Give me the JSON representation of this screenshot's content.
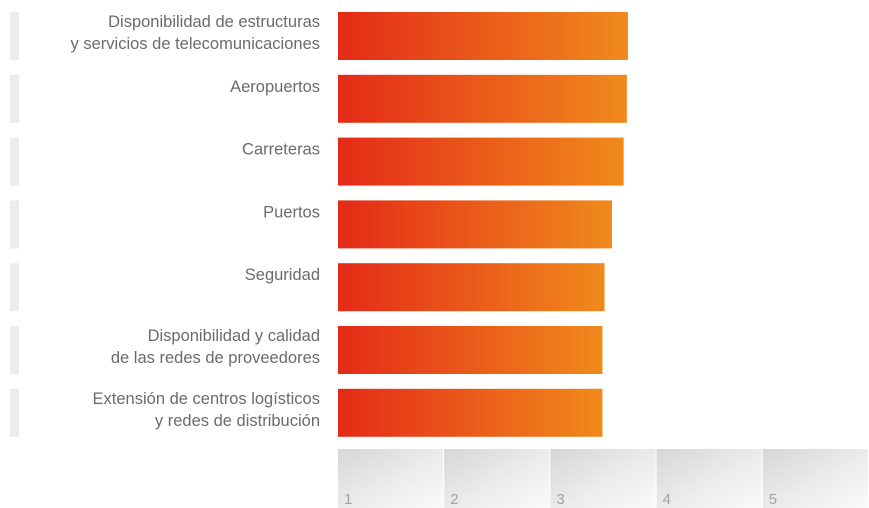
{
  "chart_data": {
    "type": "bar",
    "orientation": "horizontal",
    "categories": [
      [
        "Disponibilidad de estructuras",
        "y servicios de telecomunicaciones"
      ],
      [
        "Aeropuertos"
      ],
      [
        "Carreteras"
      ],
      [
        "Puertos"
      ],
      [
        "Seguridad"
      ],
      [
        "Disponibilidad y calidad",
        "de las redes de proveedores"
      ],
      [
        "Extensión de centros logísticos",
        "y redes de distribución"
      ]
    ],
    "values": [
      3.73,
      3.72,
      3.69,
      3.58,
      3.51,
      3.49,
      3.49
    ],
    "xlim": [
      1,
      6
    ],
    "xticks": [
      "1",
      "2",
      "3",
      "4",
      "5"
    ],
    "colors": {
      "bar_start": "#e42a18",
      "bar_end": "#f08a1c",
      "label": "#6b6b6b",
      "tick": "#a3a3a3",
      "marker": "#ececec"
    },
    "grid": false,
    "legend": "none"
  }
}
